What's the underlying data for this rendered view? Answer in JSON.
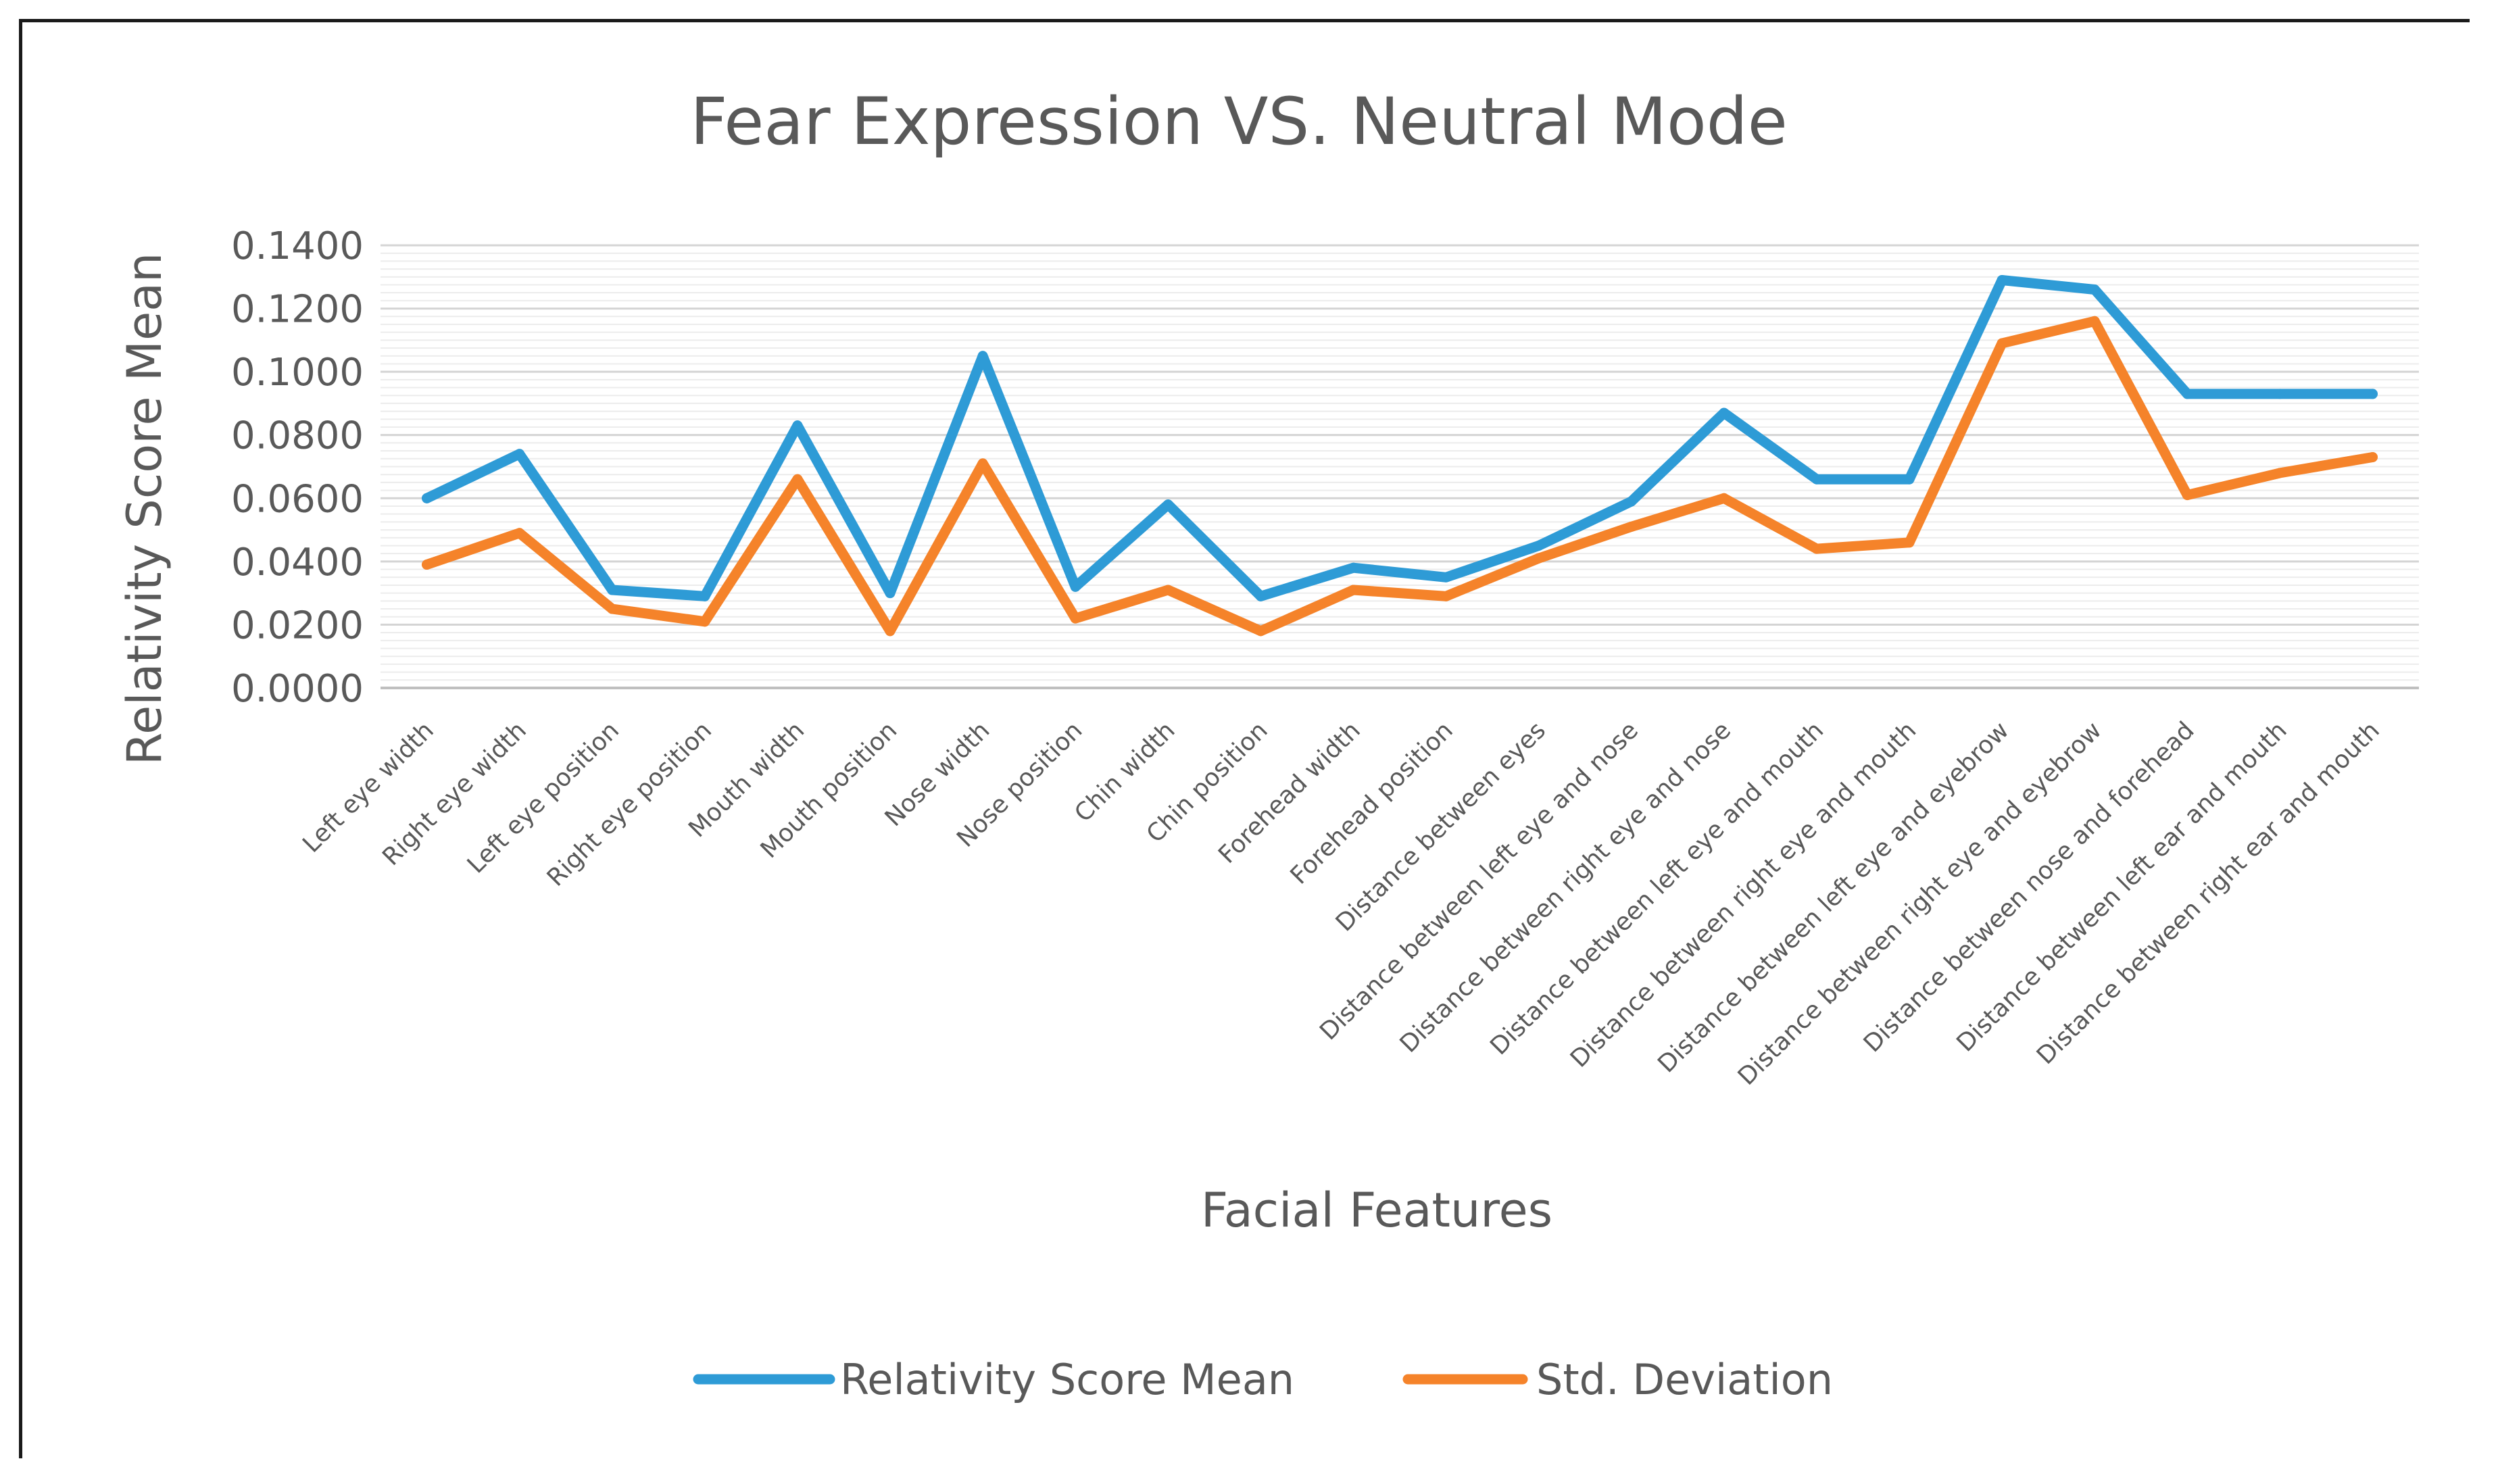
{
  "chart_data": {
    "type": "line",
    "title": "Fear Expression VS. Neutral Mode",
    "xlabel": "Facial Features",
    "ylabel": "Relativity Score Mean",
    "ylim": [
      0,
      0.14
    ],
    "yticks": [
      "0.0000",
      "0.0200",
      "0.0400",
      "0.0600",
      "0.0800",
      "0.1000",
      "0.1200",
      "0.1400"
    ],
    "ytick_values": [
      0,
      0.02,
      0.04,
      0.06,
      0.08,
      0.1,
      0.12,
      0.14
    ],
    "grid": true,
    "legend_position": "bottom",
    "categories": [
      "Left eye width",
      "Right eye width",
      "Left eye position",
      "Right eye position",
      "Mouth width",
      "Mouth position",
      "Nose width",
      "Nose position",
      "Chin width",
      "Chin position",
      "Forehead width",
      "Forehead position",
      "Distance between eyes",
      "Distance between left eye and nose",
      "Distance between right eye and nose",
      "Distance between left eye and mouth",
      "Distance between right eye and mouth",
      "Distance between left eye and eyebrow",
      "Distance between right eye and eyebrow",
      "Distance between nose and forehead",
      "Distance between left ear and mouth",
      "Distance between right ear and mouth"
    ],
    "series": [
      {
        "name": "Relativity Score Mean",
        "color": "#2E9BD6",
        "values": [
          0.06,
          0.074,
          0.031,
          0.029,
          0.083,
          0.03,
          0.105,
          0.032,
          0.058,
          0.029,
          0.038,
          0.035,
          0.045,
          0.059,
          0.087,
          0.066,
          0.066,
          0.129,
          0.126,
          0.093,
          0.093,
          0.093
        ]
      },
      {
        "name": "Std. Deviation",
        "color": "#F5832A",
        "values": [
          0.039,
          0.049,
          0.025,
          0.021,
          0.066,
          0.018,
          0.071,
          0.022,
          0.031,
          0.018,
          0.031,
          0.029,
          0.041,
          0.051,
          0.06,
          0.044,
          0.046,
          0.109,
          0.116,
          0.061,
          0.068,
          0.073
        ]
      }
    ]
  }
}
